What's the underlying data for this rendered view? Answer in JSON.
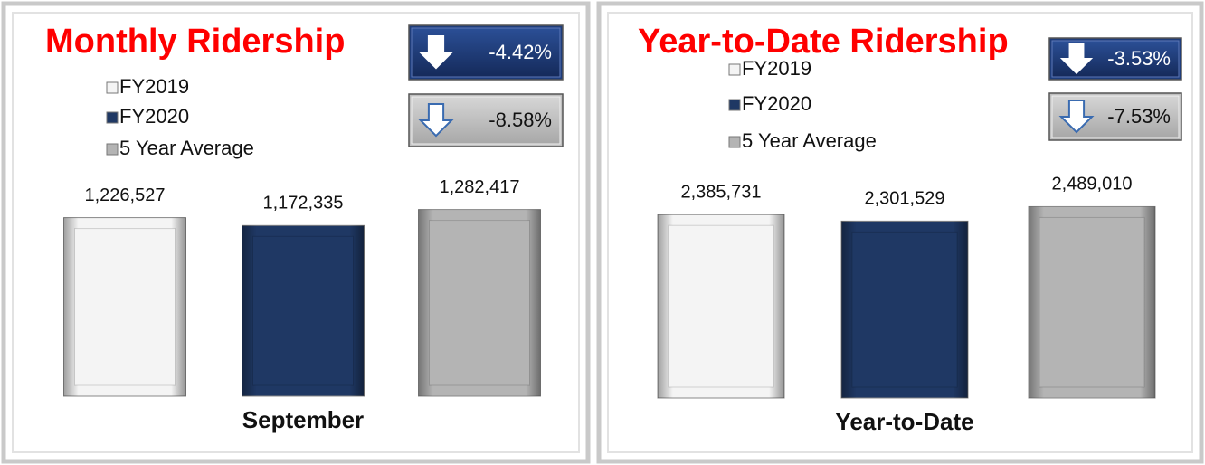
{
  "chart_data": [
    {
      "type": "bar",
      "title": "Monthly Ridership",
      "x_label": "September",
      "series": [
        {
          "name": "FY2019",
          "color": "#f4f4f4",
          "values": [
            1226527
          ],
          "value_labels": [
            "1,226,527"
          ]
        },
        {
          "name": "FY2020",
          "color": "#1f3864",
          "values": [
            1172335
          ],
          "value_labels": [
            "1,172,335"
          ]
        },
        {
          "name": "5 Year Average",
          "color": "#b4b4b4",
          "values": [
            1282417
          ],
          "value_labels": [
            "1,282,417"
          ]
        }
      ],
      "ylim": [
        0,
        2100000
      ],
      "changes": {
        "values": [
          -4.42,
          -8.58
        ],
        "value_labels": [
          "-4.42%",
          "-8.58%"
        ],
        "colors": [
          "#1f3d7a",
          "#c0c0c0"
        ]
      }
    },
    {
      "type": "bar",
      "title": "Year-to-Date Ridership",
      "x_label": "Year-to-Date",
      "series": [
        {
          "name": "FY2019",
          "color": "#f4f4f4",
          "values": [
            2385731
          ],
          "value_labels": [
            "2,385,731"
          ]
        },
        {
          "name": "FY2020",
          "color": "#1f3864",
          "values": [
            2301529
          ],
          "value_labels": [
            "2,301,529"
          ]
        },
        {
          "name": "5 Year Average",
          "color": "#b4b4b4",
          "values": [
            2489010
          ],
          "value_labels": [
            "2,489,010"
          ]
        }
      ],
      "ylim": [
        0,
        4000000
      ],
      "changes": {
        "values": [
          -3.53,
          -7.53
        ],
        "value_labels": [
          "-3.53%",
          "-7.53%"
        ],
        "colors": [
          "#1f3d7a",
          "#c0c0c0"
        ]
      }
    }
  ]
}
